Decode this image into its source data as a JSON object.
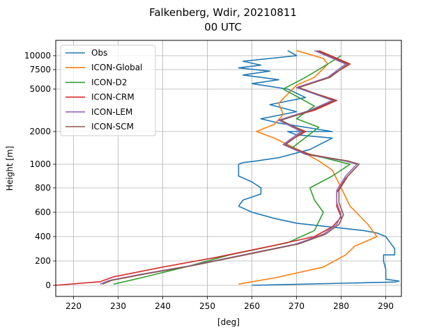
{
  "chart_data": {
    "type": "line",
    "title": "Falkenberg, Wdir, 20210811",
    "subtitle": "00 UTC",
    "xlabel": "[deg]",
    "ylabel": "Height [m]",
    "xlim": [
      216,
      293.5
    ],
    "ylim": [
      -100,
      11500
    ],
    "x_ticks": [
      220,
      230,
      240,
      250,
      260,
      270,
      280,
      290
    ],
    "y_ticks": [
      0,
      200,
      400,
      600,
      800,
      1000,
      2000,
      5000,
      7500,
      10000
    ],
    "grid": true,
    "legend_position": "top-left",
    "colors": {
      "Obs": "#1f77b4",
      "ICON-Global": "#ff7f0e",
      "ICON-D2": "#2ca02c",
      "ICON-CRM": "#d62728",
      "ICON-LEM": "#9467bd",
      "ICON-SCM": "#8c564b"
    },
    "series": [
      {
        "name": "Obs",
        "points": [
          [
            260,
            0
          ],
          [
            292,
            27
          ],
          [
            293,
            35
          ],
          [
            290,
            50
          ],
          [
            290,
            130
          ],
          [
            289.5,
            200
          ],
          [
            289.5,
            250
          ],
          [
            292,
            250
          ],
          [
            292,
            300
          ],
          [
            291,
            350
          ],
          [
            290,
            400
          ],
          [
            288,
            430
          ],
          [
            285,
            450
          ],
          [
            280,
            470
          ],
          [
            270,
            510
          ],
          [
            265,
            550
          ],
          [
            260,
            600
          ],
          [
            257,
            650
          ],
          [
            258,
            700
          ],
          [
            262,
            750
          ],
          [
            262,
            800
          ],
          [
            260,
            850
          ],
          [
            257,
            900
          ],
          [
            257,
            1000
          ],
          [
            258,
            1050
          ],
          [
            261,
            1100
          ],
          [
            266,
            1200
          ],
          [
            273,
            1450
          ],
          [
            278,
            1800
          ],
          [
            270,
            1900
          ],
          [
            268,
            2000
          ],
          [
            278,
            2000
          ],
          [
            266,
            2600
          ],
          [
            262,
            2900
          ],
          [
            270,
            3400
          ],
          [
            264,
            3900
          ],
          [
            272,
            4400
          ],
          [
            268,
            5000
          ],
          [
            260,
            5700
          ],
          [
            266,
            6200
          ],
          [
            258,
            6800
          ],
          [
            264,
            7300
          ],
          [
            257,
            7800
          ],
          [
            262,
            8300
          ],
          [
            258,
            9000
          ],
          [
            264,
            9500
          ],
          [
            270,
            10000
          ],
          [
            268,
            10500
          ]
        ]
      },
      {
        "name": "ICON-Global",
        "points": [
          [
            257,
            10
          ],
          [
            265,
            60
          ],
          [
            276,
            150
          ],
          [
            281,
            250
          ],
          [
            283,
            320
          ],
          [
            288,
            400
          ],
          [
            286,
            500
          ],
          [
            282,
            650
          ],
          [
            280,
            800
          ],
          [
            278,
            950
          ],
          [
            275,
            1100
          ],
          [
            271,
            1400
          ],
          [
            265,
            1800
          ],
          [
            261,
            2000
          ],
          [
            265,
            2500
          ],
          [
            267,
            3200
          ],
          [
            266,
            4000
          ],
          [
            270,
            5500
          ],
          [
            274,
            6500
          ],
          [
            277,
            8500
          ],
          [
            276,
            9500
          ],
          [
            270,
            10500
          ]
        ]
      },
      {
        "name": "ICON-D2",
        "points": [
          [
            229,
            10
          ],
          [
            235,
            60
          ],
          [
            245,
            150
          ],
          [
            255,
            250
          ],
          [
            268,
            350
          ],
          [
            274,
            450
          ],
          [
            276,
            600
          ],
          [
            274,
            700
          ],
          [
            273,
            800
          ],
          [
            278,
            900
          ],
          [
            282,
            1000
          ],
          [
            279,
            1100
          ],
          [
            273,
            1300
          ],
          [
            269,
            1500
          ],
          [
            275,
            2300
          ],
          [
            270,
            2900
          ],
          [
            274,
            3800
          ],
          [
            267,
            5000
          ],
          [
            272,
            6500
          ],
          [
            277,
            8500
          ],
          [
            280,
            10000
          ]
        ]
      },
      {
        "name": "ICON-CRM",
        "points": [
          [
            216,
            0
          ],
          [
            226,
            30
          ],
          [
            229,
            70
          ],
          [
            240,
            150
          ],
          [
            252,
            230
          ],
          [
            264,
            320
          ],
          [
            274,
            400
          ],
          [
            278,
            480
          ],
          [
            280,
            560
          ],
          [
            279,
            650
          ],
          [
            279,
            760
          ],
          [
            281,
            880
          ],
          [
            284,
            1000
          ],
          [
            281,
            1100
          ],
          [
            273,
            1300
          ],
          [
            267,
            1600
          ],
          [
            272,
            2000
          ],
          [
            266,
            2800
          ],
          [
            274,
            3500
          ],
          [
            279,
            4200
          ],
          [
            270,
            5200
          ],
          [
            277,
            6500
          ],
          [
            282,
            8500
          ],
          [
            275,
            10500
          ]
        ]
      },
      {
        "name": "ICON-LEM",
        "points": [
          [
            226,
            10
          ],
          [
            228,
            40
          ],
          [
            235,
            90
          ],
          [
            246,
            160
          ],
          [
            258,
            250
          ],
          [
            270,
            340
          ],
          [
            276,
            420
          ],
          [
            279,
            500
          ],
          [
            280,
            580
          ],
          [
            279,
            680
          ],
          [
            279,
            780
          ],
          [
            281,
            900
          ],
          [
            283.5,
            1000
          ],
          [
            281,
            1100
          ],
          [
            272,
            1300
          ],
          [
            267,
            1600
          ],
          [
            271,
            2000
          ],
          [
            266,
            2800
          ],
          [
            273,
            3500
          ],
          [
            278,
            4200
          ],
          [
            270,
            5200
          ],
          [
            277,
            6500
          ],
          [
            281,
            8500
          ],
          [
            274,
            10500
          ]
        ]
      },
      {
        "name": "ICON-SCM",
        "points": [
          [
            226.5,
            10
          ],
          [
            228.5,
            40
          ],
          [
            235.5,
            90
          ],
          [
            246.5,
            160
          ],
          [
            258.5,
            250
          ],
          [
            270.5,
            340
          ],
          [
            276.5,
            420
          ],
          [
            279.5,
            500
          ],
          [
            280.5,
            580
          ],
          [
            279.5,
            680
          ],
          [
            279.5,
            780
          ],
          [
            281.5,
            900
          ],
          [
            284,
            1000
          ],
          [
            281.5,
            1100
          ],
          [
            272.5,
            1300
          ],
          [
            267.5,
            1600
          ],
          [
            271.5,
            2000
          ],
          [
            266.5,
            2800
          ],
          [
            273.5,
            3500
          ],
          [
            278.5,
            4200
          ],
          [
            270.5,
            5200
          ],
          [
            277.5,
            6500
          ],
          [
            281.5,
            8500
          ],
          [
            274.5,
            10500
          ]
        ]
      }
    ]
  }
}
